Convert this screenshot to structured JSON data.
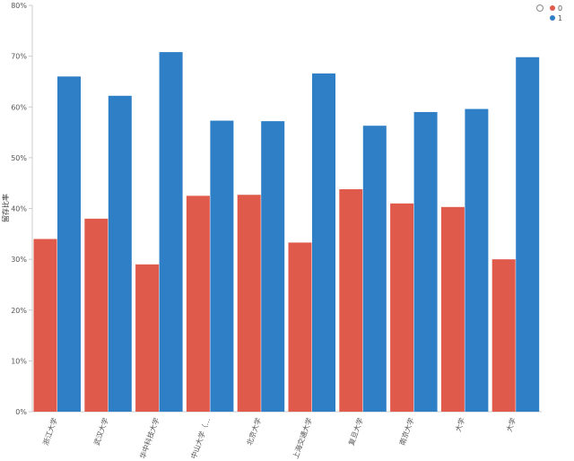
{
  "chart_data": {
    "type": "bar",
    "ylabel": "留存比率",
    "ylim": [
      0,
      80
    ],
    "yticks": [
      "0%",
      "10%",
      "20%",
      "30%",
      "40%",
      "50%",
      "60%",
      "70%",
      "80%"
    ],
    "grid": false,
    "legend_position": "top-right",
    "categories": [
      "浙江大学",
      "武汉大学",
      "华中科技大学",
      "中山大学（…",
      "北京大学",
      "上海交通大学",
      "复旦大学",
      "南京大学",
      "大学",
      "大学"
    ],
    "series": [
      {
        "name": "0",
        "color": "#e05a4c",
        "values": [
          34,
          38,
          29,
          42.5,
          42.7,
          33.3,
          43.8,
          41,
          40.3,
          30
        ]
      },
      {
        "name": "1",
        "color": "#2f7fc6",
        "values": [
          66,
          62.2,
          70.8,
          57.3,
          57.2,
          66.6,
          56.3,
          59,
          59.6,
          69.8
        ]
      }
    ]
  }
}
